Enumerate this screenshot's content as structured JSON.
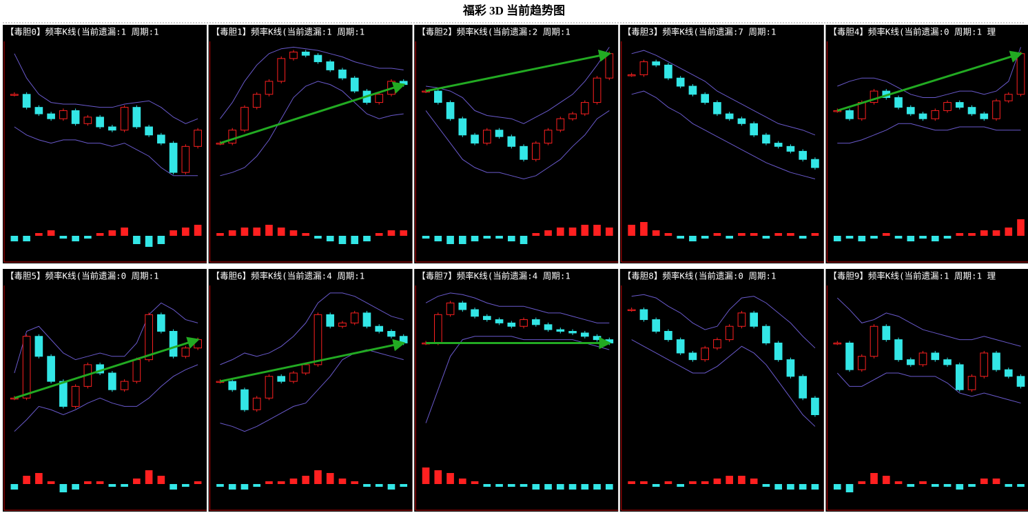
{
  "title": "福彩 3D 当前趋势图",
  "price_ylim": [
    0,
    100
  ],
  "macd_ylim": [
    -8,
    8
  ],
  "chart_data": [
    {
      "type": "candlestick",
      "title": "【毒胆0】频率K线(当前遗漏:1 周期:1",
      "arrow": false,
      "close": [
        70,
        62,
        58,
        55,
        60,
        52,
        56,
        50,
        48,
        62,
        50,
        45,
        40,
        22,
        38,
        48
      ],
      "upper": [
        95,
        80,
        70,
        65,
        64,
        64,
        63,
        62,
        62,
        64,
        65,
        66,
        62,
        56,
        52,
        55
      ],
      "lower": [
        50,
        45,
        42,
        40,
        42,
        42,
        40,
        40,
        38,
        40,
        36,
        32,
        25,
        20,
        20,
        20
      ],
      "macd": [
        -2,
        -2,
        1,
        2,
        -1,
        -2,
        -1,
        1,
        2,
        3,
        -3,
        -4,
        -3,
        2,
        3,
        4
      ]
    },
    {
      "type": "candlestick",
      "title": "【毒胆1】频率K线(当前遗漏:1 周期:1",
      "arrow": true,
      "close": [
        40,
        48,
        62,
        70,
        78,
        92,
        96,
        94,
        90,
        85,
        80,
        72,
        65,
        70,
        78,
        76
      ],
      "upper": [
        55,
        65,
        78,
        88,
        95,
        98,
        99,
        98,
        97,
        95,
        93,
        90,
        88,
        86,
        86,
        85
      ],
      "lower": [
        20,
        22,
        25,
        32,
        42,
        55,
        68,
        75,
        78,
        76,
        72,
        65,
        58,
        55,
        57,
        58
      ],
      "macd": [
        1,
        2,
        3,
        3,
        4,
        3,
        2,
        1,
        -1,
        -2,
        -3,
        -3,
        -2,
        1,
        2,
        2
      ]
    },
    {
      "type": "candlestick",
      "title": "【毒胆2】频率K线(当前遗漏:2 周期:1",
      "arrow": true,
      "close": [
        72,
        65,
        55,
        45,
        40,
        48,
        44,
        38,
        30,
        40,
        48,
        55,
        58,
        65,
        80,
        95
      ],
      "upper": [
        75,
        74,
        72,
        68,
        60,
        57,
        56,
        55,
        52,
        56,
        60,
        65,
        70,
        78,
        88,
        99
      ],
      "lower": [
        60,
        50,
        40,
        30,
        25,
        22,
        22,
        20,
        18,
        20,
        25,
        30,
        38,
        45,
        55,
        60
      ],
      "macd": [
        -1,
        -2,
        -3,
        -3,
        -2,
        -1,
        -1,
        -2,
        -3,
        1,
        2,
        3,
        3,
        4,
        4,
        3
      ]
    },
    {
      "type": "candlestick",
      "title": "【毒胆3】频率K线(当前遗漏:7 周期:1",
      "arrow": false,
      "close": [
        82,
        90,
        88,
        80,
        75,
        70,
        65,
        58,
        55,
        52,
        45,
        40,
        38,
        35,
        30,
        25
      ],
      "upper": [
        95,
        97,
        94,
        90,
        86,
        82,
        78,
        72,
        68,
        64,
        60,
        56,
        52,
        50,
        48,
        45
      ],
      "lower": [
        70,
        72,
        68,
        62,
        58,
        52,
        48,
        44,
        40,
        36,
        32,
        28,
        25,
        22,
        20,
        18
      ],
      "macd": [
        4,
        5,
        2,
        1,
        -1,
        -2,
        -1,
        1,
        -1,
        1,
        1,
        -1,
        1,
        1,
        -1,
        1
      ]
    },
    {
      "type": "candlestick",
      "title": "【毒胆4】频率K线(当前遗漏:0 周期:1 理",
      "arrow": true,
      "close": [
        60,
        55,
        65,
        72,
        68,
        62,
        58,
        55,
        60,
        65,
        62,
        58,
        55,
        66,
        70,
        95
      ],
      "upper": [
        75,
        78,
        80,
        80,
        78,
        74,
        70,
        68,
        68,
        70,
        72,
        72,
        70,
        72,
        78,
        99
      ],
      "lower": [
        40,
        40,
        42,
        45,
        48,
        52,
        52,
        50,
        48,
        48,
        50,
        50,
        50,
        48,
        48,
        48
      ],
      "macd": [
        -2,
        -1,
        -2,
        -1,
        1,
        -1,
        -2,
        -1,
        -2,
        -1,
        1,
        1,
        2,
        2,
        3,
        6
      ]
    },
    {
      "type": "candlestick",
      "title": "【毒胆5】频率K线(当前遗漏:0 周期:1",
      "arrow": true,
      "close": [
        35,
        72,
        60,
        45,
        30,
        42,
        55,
        50,
        40,
        45,
        58,
        85,
        75,
        60,
        65,
        70
      ],
      "upper": [
        50,
        75,
        78,
        70,
        62,
        58,
        60,
        62,
        60,
        60,
        68,
        85,
        92,
        88,
        82,
        80
      ],
      "lower": [
        15,
        22,
        30,
        28,
        25,
        28,
        32,
        35,
        32,
        30,
        30,
        35,
        42,
        48,
        52,
        55
      ],
      "macd": [
        -2,
        3,
        4,
        1,
        -3,
        -2,
        1,
        1,
        -1,
        -1,
        2,
        5,
        3,
        -2,
        -1,
        1
      ]
    },
    {
      "type": "candlestick",
      "title": "【毒胆6】频率K线(当前遗漏:4 周期:1",
      "arrow": true,
      "close": [
        45,
        40,
        28,
        35,
        48,
        45,
        50,
        55,
        85,
        78,
        80,
        86,
        78,
        75,
        72,
        68
      ],
      "upper": [
        55,
        58,
        62,
        60,
        62,
        66,
        72,
        80,
        92,
        98,
        98,
        96,
        92,
        88,
        84,
        82
      ],
      "lower": [
        20,
        18,
        15,
        18,
        22,
        26,
        30,
        32,
        40,
        48,
        58,
        62,
        64,
        62,
        60,
        58
      ],
      "macd": [
        -1,
        -2,
        -2,
        -1,
        1,
        1,
        2,
        3,
        5,
        4,
        2,
        1,
        -1,
        -1,
        -2,
        -1
      ]
    },
    {
      "type": "candlestick",
      "title": "【毒胆7】频率K线(当前遗漏:4 周期:1",
      "arrow": true,
      "close": [
        68,
        85,
        92,
        88,
        84,
        82,
        80,
        78,
        82,
        79,
        76,
        75,
        74,
        72,
        70,
        68
      ],
      "upper": [
        92,
        96,
        98,
        97,
        95,
        92,
        90,
        90,
        90,
        88,
        86,
        86,
        84,
        82,
        80,
        80
      ],
      "lower": [
        20,
        40,
        60,
        70,
        72,
        72,
        72,
        72,
        70,
        70,
        70,
        70,
        70,
        68,
        66,
        64
      ],
      "macd": [
        6,
        5,
        4,
        2,
        1,
        -1,
        -1,
        -1,
        -1,
        -2,
        -2,
        -2,
        -2,
        -2,
        -2,
        -2
      ]
    },
    {
      "type": "candlestick",
      "title": "【毒胆8】频率K线(当前遗漏:0 周期:1",
      "arrow": false,
      "close": [
        88,
        82,
        75,
        70,
        62,
        58,
        65,
        70,
        78,
        86,
        78,
        68,
        58,
        48,
        35,
        25
      ],
      "upper": [
        96,
        97,
        95,
        90,
        86,
        80,
        76,
        78,
        88,
        95,
        96,
        92,
        86,
        80,
        72,
        65
      ],
      "lower": [
        70,
        66,
        62,
        58,
        54,
        50,
        50,
        54,
        60,
        66,
        62,
        55,
        45,
        35,
        25,
        18
      ],
      "macd": [
        1,
        1,
        -1,
        1,
        -1,
        1,
        1,
        2,
        3,
        3,
        2,
        -1,
        -2,
        -2,
        -2,
        -2
      ]
    },
    {
      "type": "candlestick",
      "title": "【毒胆9】频率K线(当前遗漏:1 周期:1 理",
      "arrow": false,
      "close": [
        68,
        52,
        60,
        78,
        70,
        58,
        55,
        62,
        58,
        55,
        40,
        48,
        62,
        52,
        48,
        42
      ],
      "upper": [
        95,
        88,
        80,
        82,
        86,
        84,
        80,
        76,
        74,
        72,
        70,
        70,
        72,
        70,
        68,
        66
      ],
      "lower": [
        50,
        42,
        42,
        46,
        50,
        50,
        48,
        48,
        48,
        44,
        38,
        36,
        38,
        36,
        34,
        32
      ],
      "macd": [
        -2,
        -3,
        1,
        4,
        3,
        1,
        -1,
        1,
        -1,
        -1,
        -2,
        -1,
        2,
        2,
        -1,
        -1
      ]
    }
  ]
}
